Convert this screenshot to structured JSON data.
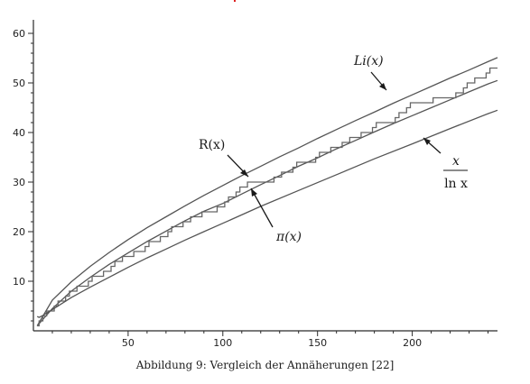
{
  "caption": "Abbildung 9: Vergleich der Annäherungen [22]",
  "colors": {
    "curve": "#555555",
    "pi_curve": "#666666",
    "axis": "#2a2a2a",
    "background": "#ffffff"
  },
  "chart_data": {
    "type": "line",
    "title": "",
    "xlabel": "",
    "ylabel": "",
    "xlim": [
      0,
      245
    ],
    "ylim": [
      0,
      62
    ],
    "x_ticks": [
      50,
      100,
      150,
      200
    ],
    "y_ticks": [
      10,
      20,
      30,
      40,
      50,
      60
    ],
    "grid": false,
    "annotations": [
      {
        "label": "Li(x)",
        "points_to_series": "Li(x)"
      },
      {
        "label": "R(x)",
        "points_to_series": "R(x)"
      },
      {
        "label": "π(x)",
        "points_to_series": "π(x)"
      },
      {
        "label": "x / ln x",
        "numerator": "x",
        "denominator": "ln x",
        "points_to_series": "x/ln x"
      }
    ],
    "series": [
      {
        "name": "Li(x)",
        "x": [
          2,
          10,
          20,
          30,
          40,
          50,
          60,
          70,
          80,
          90,
          100,
          110,
          120,
          130,
          140,
          150,
          160,
          170,
          180,
          190,
          200,
          210,
          220,
          230,
          240,
          245
        ],
        "values": [
          1.0,
          6.2,
          9.9,
          13.0,
          15.8,
          18.4,
          20.8,
          23.0,
          25.2,
          27.3,
          29.3,
          31.3,
          33.2,
          35.1,
          36.9,
          38.8,
          40.6,
          42.4,
          44.1,
          45.9,
          47.6,
          49.3,
          51.0,
          52.6,
          54.3,
          55.1
        ]
      },
      {
        "name": "R(x)",
        "x": [
          2,
          10,
          20,
          30,
          40,
          50,
          60,
          70,
          80,
          90,
          100,
          110,
          120,
          130,
          140,
          150,
          160,
          170,
          180,
          190,
          200,
          210,
          220,
          230,
          240,
          245
        ],
        "values": [
          1.0,
          4.5,
          8.0,
          10.8,
          13.4,
          15.7,
          18.0,
          20.1,
          22.2,
          24.1,
          25.7,
          27.6,
          29.5,
          31.3,
          33.2,
          34.9,
          36.7,
          38.4,
          40.1,
          41.8,
          43.4,
          45.0,
          46.6,
          48.2,
          49.8,
          50.5
        ]
      },
      {
        "name": "π(x)",
        "x": [
          2,
          3,
          5,
          7,
          11,
          13,
          17,
          19,
          23,
          29,
          31,
          37,
          41,
          43,
          47,
          53,
          59,
          61,
          67,
          71,
          73,
          79,
          83,
          89,
          97,
          101,
          103,
          107,
          109,
          113,
          127,
          131,
          137,
          139,
          149,
          151,
          157,
          163,
          167,
          173,
          179,
          181,
          191,
          193,
          197,
          199,
          211,
          223,
          227,
          229,
          233,
          239,
          241,
          245
        ],
        "values": [
          1,
          2,
          3,
          4,
          5,
          6,
          7,
          8,
          9,
          10,
          11,
          12,
          13,
          14,
          15,
          16,
          17,
          18,
          19,
          20,
          21,
          22,
          23,
          24,
          25,
          26,
          27,
          28,
          29,
          30,
          31,
          32,
          33,
          34,
          35,
          36,
          37,
          38,
          39,
          40,
          41,
          42,
          43,
          44,
          45,
          46,
          47,
          48,
          49,
          50,
          51,
          52,
          53,
          53
        ]
      },
      {
        "name": "x/ln x",
        "x": [
          2,
          3,
          5,
          10,
          20,
          30,
          40,
          50,
          60,
          70,
          80,
          90,
          100,
          120,
          140,
          160,
          180,
          200,
          220,
          240,
          245
        ],
        "values": [
          2.9,
          2.7,
          3.1,
          4.3,
          6.7,
          8.8,
          10.8,
          12.8,
          14.7,
          16.5,
          18.3,
          20.0,
          21.7,
          25.1,
          28.3,
          31.5,
          34.7,
          37.7,
          40.8,
          43.8,
          44.5
        ]
      }
    ]
  }
}
